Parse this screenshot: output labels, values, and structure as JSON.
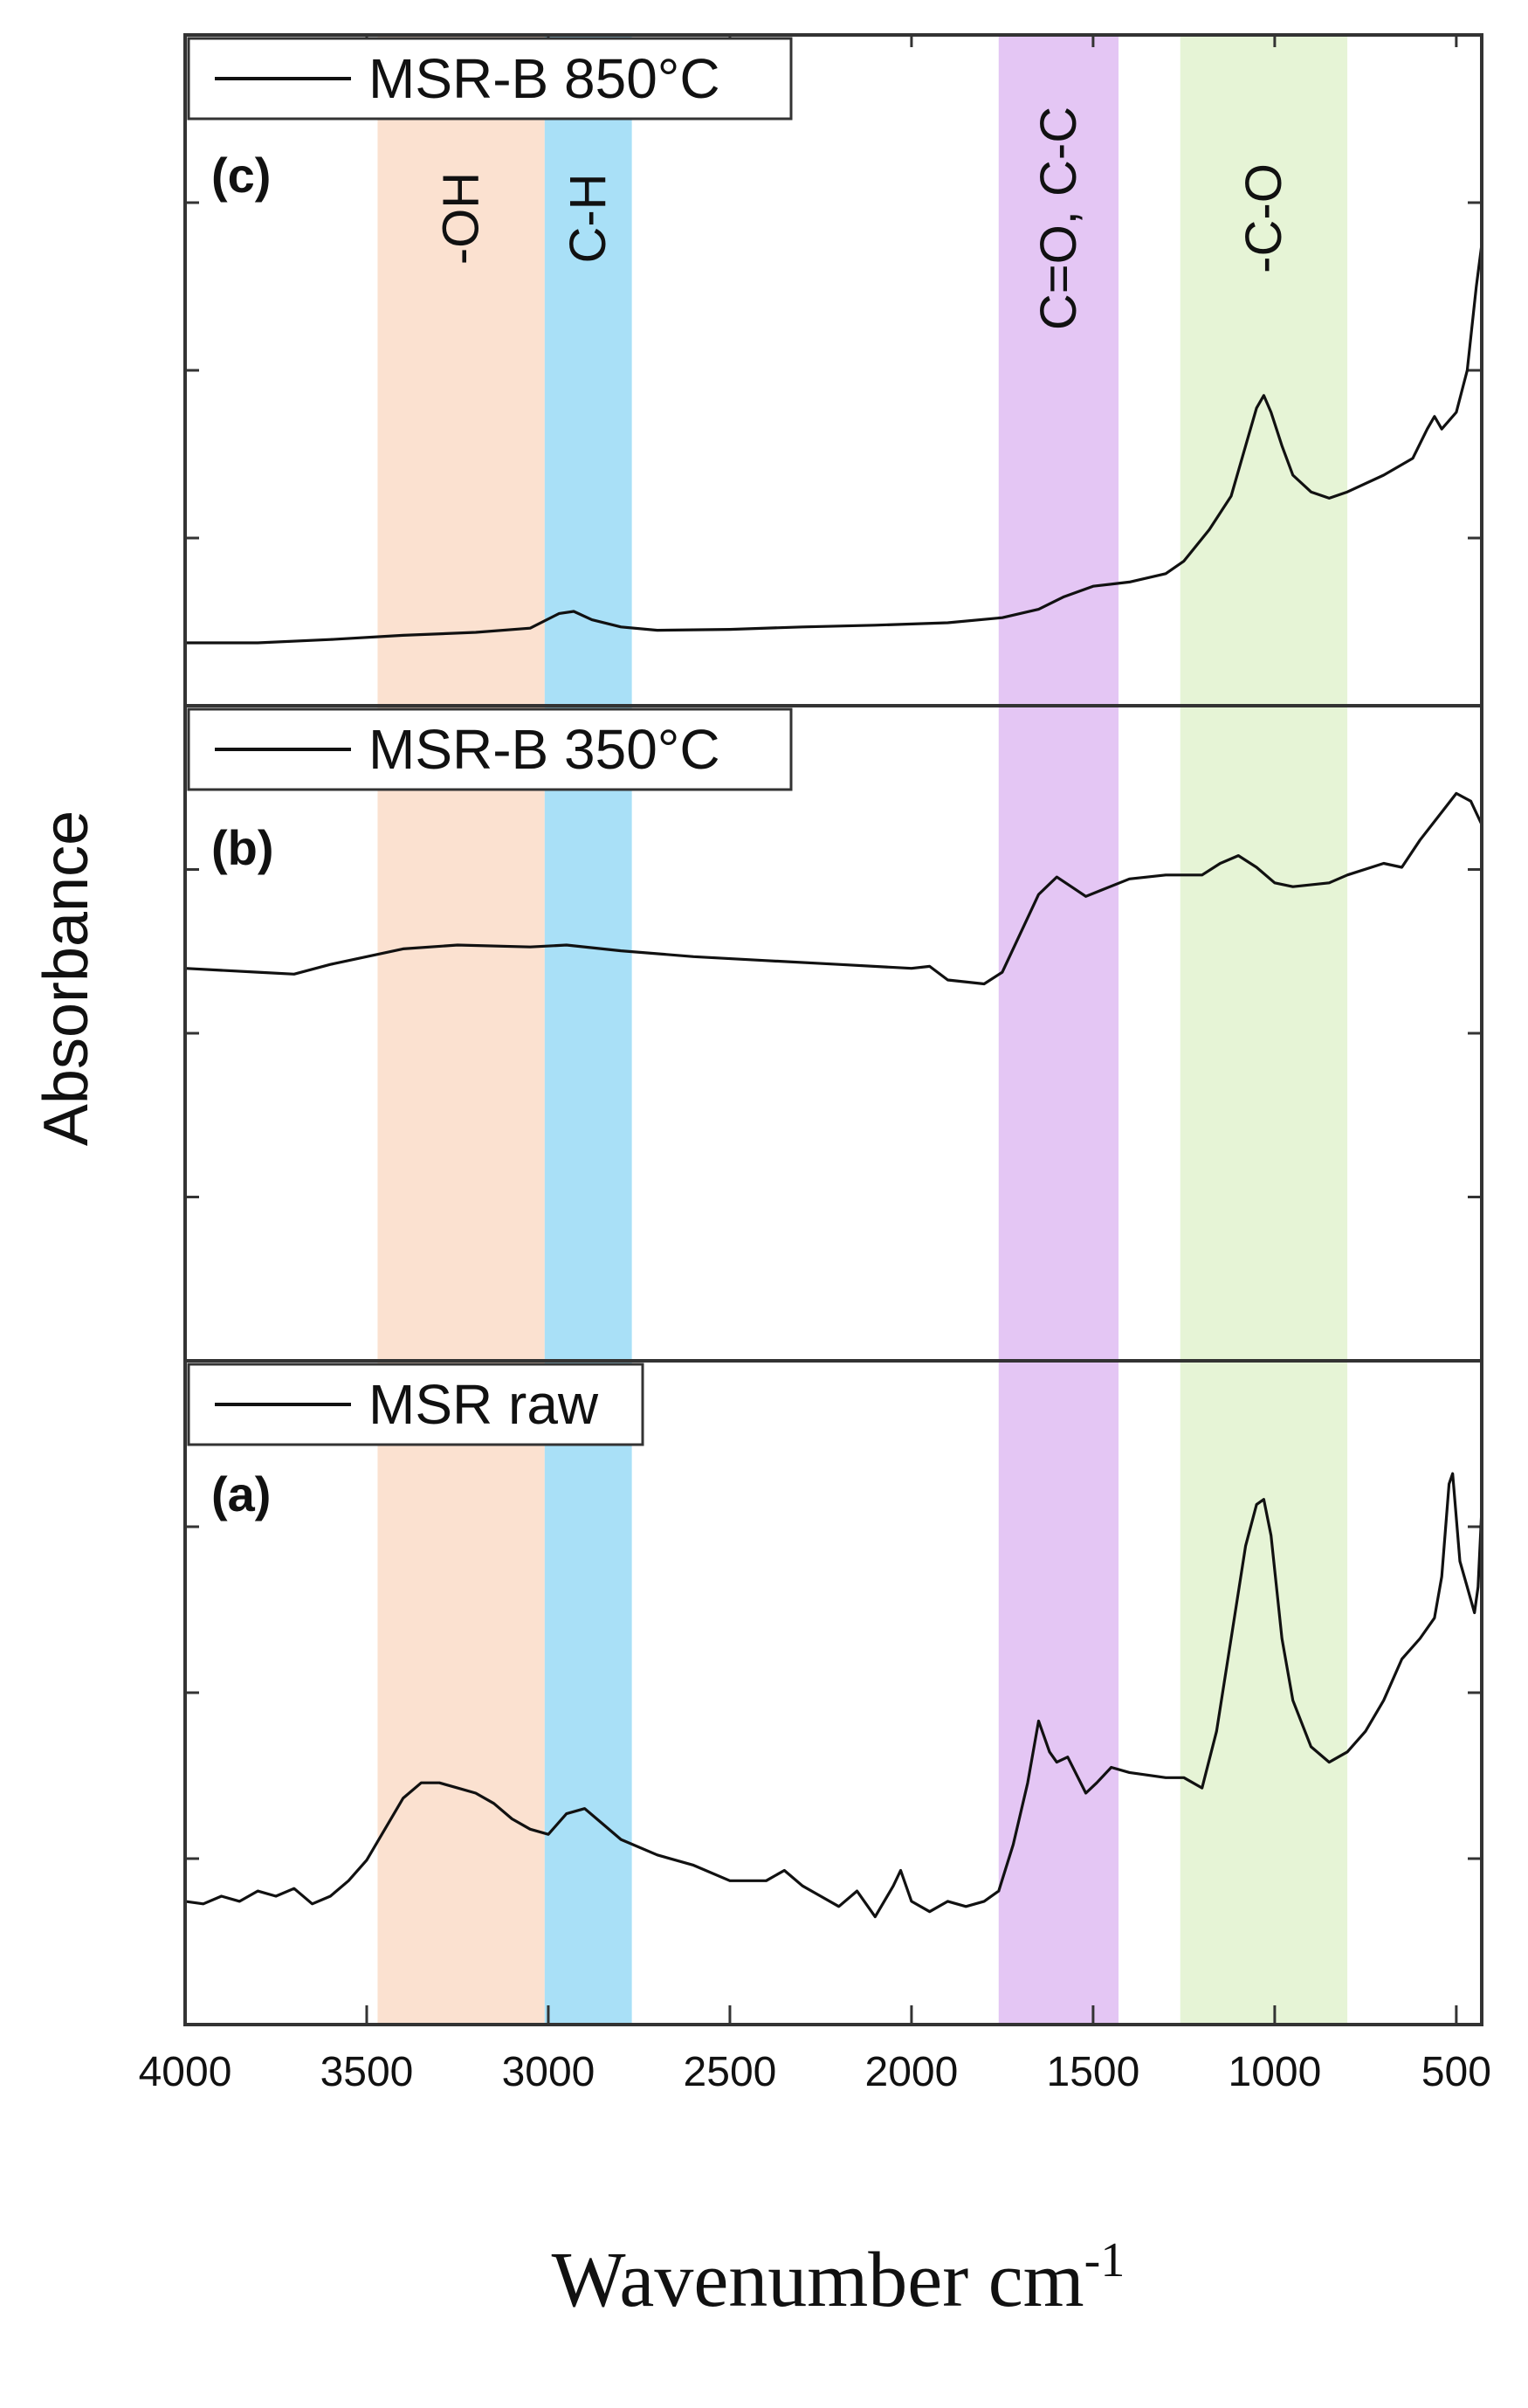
{
  "chart_data": {
    "type": "line",
    "ylabel": "Absorbance",
    "xlabel": "Wavenumber cm",
    "xlabel_superscript": "-1",
    "xlim": [
      4000,
      430
    ],
    "x_ticks": [
      4000,
      3500,
      3000,
      2500,
      2000,
      1500,
      1000,
      500
    ],
    "bands": [
      {
        "label": "-OH",
        "from": 3470,
        "to": 3010,
        "color": "#fbe1d0"
      },
      {
        "label": "C-H",
        "from": 3010,
        "to": 2770,
        "color": "#a9e0f7"
      },
      {
        "label": "C=O, C-C",
        "from": 1760,
        "to": 1430,
        "color": "#e4c6f4"
      },
      {
        "label": "-C-O",
        "from": 1260,
        "to": 800,
        "color": "#e6f4d6"
      }
    ],
    "panels": [
      {
        "tag": "(c)",
        "series": {
          "name": "MSR-B 850°C",
          "points": [
            [
              4000,
              0.05
            ],
            [
              3800,
              0.05
            ],
            [
              3600,
              0.058
            ],
            [
              3400,
              0.068
            ],
            [
              3200,
              0.075
            ],
            [
              3050,
              0.085
            ],
            [
              2970,
              0.12
            ],
            [
              2930,
              0.125
            ],
            [
              2880,
              0.105
            ],
            [
              2800,
              0.088
            ],
            [
              2700,
              0.08
            ],
            [
              2500,
              0.082
            ],
            [
              2300,
              0.088
            ],
            [
              2100,
              0.092
            ],
            [
              1900,
              0.098
            ],
            [
              1750,
              0.11
            ],
            [
              1650,
              0.13
            ],
            [
              1580,
              0.16
            ],
            [
              1500,
              0.185
            ],
            [
              1400,
              0.195
            ],
            [
              1300,
              0.215
            ],
            [
              1250,
              0.245
            ],
            [
              1180,
              0.32
            ],
            [
              1120,
              0.4
            ],
            [
              1080,
              0.52
            ],
            [
              1050,
              0.61
            ],
            [
              1030,
              0.64
            ],
            [
              1010,
              0.6
            ],
            [
              980,
              0.52
            ],
            [
              950,
              0.45
            ],
            [
              900,
              0.41
            ],
            [
              850,
              0.395
            ],
            [
              800,
              0.41
            ],
            [
              700,
              0.45
            ],
            [
              620,
              0.49
            ],
            [
              580,
              0.56
            ],
            [
              560,
              0.59
            ],
            [
              540,
              0.56
            ],
            [
              500,
              0.6
            ],
            [
              470,
              0.7
            ],
            [
              445,
              0.9
            ],
            [
              430,
              1.0
            ]
          ]
        }
      },
      {
        "tag": "(b)",
        "series": {
          "name": "MSR-B 350°C",
          "points": [
            [
              4000,
              0.43
            ],
            [
              3800,
              0.42
            ],
            [
              3700,
              0.415
            ],
            [
              3600,
              0.44
            ],
            [
              3400,
              0.48
            ],
            [
              3250,
              0.49
            ],
            [
              3050,
              0.485
            ],
            [
              2950,
              0.49
            ],
            [
              2800,
              0.475
            ],
            [
              2600,
              0.46
            ],
            [
              2400,
              0.45
            ],
            [
              2200,
              0.44
            ],
            [
              2000,
              0.43
            ],
            [
              1950,
              0.435
            ],
            [
              1900,
              0.4
            ],
            [
              1800,
              0.39
            ],
            [
              1750,
              0.42
            ],
            [
              1700,
              0.52
            ],
            [
              1650,
              0.62
            ],
            [
              1600,
              0.665
            ],
            [
              1560,
              0.64
            ],
            [
              1520,
              0.615
            ],
            [
              1480,
              0.63
            ],
            [
              1400,
              0.66
            ],
            [
              1300,
              0.67
            ],
            [
              1200,
              0.67
            ],
            [
              1150,
              0.7
            ],
            [
              1100,
              0.72
            ],
            [
              1050,
              0.69
            ],
            [
              1000,
              0.65
            ],
            [
              950,
              0.64
            ],
            [
              850,
              0.65
            ],
            [
              800,
              0.67
            ],
            [
              700,
              0.7
            ],
            [
              650,
              0.69
            ],
            [
              600,
              0.76
            ],
            [
              550,
              0.82
            ],
            [
              500,
              0.88
            ],
            [
              460,
              0.86
            ],
            [
              430,
              0.8
            ]
          ]
        }
      },
      {
        "tag": "(a)",
        "series": {
          "name": "MSR raw",
          "points": [
            [
              4000,
              0.09
            ],
            [
              3950,
              0.085
            ],
            [
              3900,
              0.1
            ],
            [
              3850,
              0.09
            ],
            [
              3800,
              0.11
            ],
            [
              3750,
              0.1
            ],
            [
              3700,
              0.115
            ],
            [
              3650,
              0.085
            ],
            [
              3600,
              0.1
            ],
            [
              3550,
              0.13
            ],
            [
              3500,
              0.17
            ],
            [
              3450,
              0.23
            ],
            [
              3400,
              0.29
            ],
            [
              3350,
              0.32
            ],
            [
              3300,
              0.32
            ],
            [
              3250,
              0.31
            ],
            [
              3200,
              0.3
            ],
            [
              3150,
              0.28
            ],
            [
              3100,
              0.25
            ],
            [
              3050,
              0.23
            ],
            [
              3000,
              0.22
            ],
            [
              2950,
              0.26
            ],
            [
              2900,
              0.27
            ],
            [
              2850,
              0.24
            ],
            [
              2800,
              0.21
            ],
            [
              2700,
              0.18
            ],
            [
              2600,
              0.16
            ],
            [
              2500,
              0.13
            ],
            [
              2400,
              0.13
            ],
            [
              2350,
              0.15
            ],
            [
              2300,
              0.12
            ],
            [
              2250,
              0.1
            ],
            [
              2200,
              0.08
            ],
            [
              2150,
              0.11
            ],
            [
              2100,
              0.06
            ],
            [
              2050,
              0.12
            ],
            [
              2030,
              0.15
            ],
            [
              2000,
              0.09
            ],
            [
              1950,
              0.07
            ],
            [
              1900,
              0.09
            ],
            [
              1850,
              0.08
            ],
            [
              1800,
              0.09
            ],
            [
              1760,
              0.11
            ],
            [
              1720,
              0.2
            ],
            [
              1680,
              0.32
            ],
            [
              1650,
              0.44
            ],
            [
              1620,
              0.38
            ],
            [
              1600,
              0.36
            ],
            [
              1570,
              0.37
            ],
            [
              1520,
              0.3
            ],
            [
              1490,
              0.32
            ],
            [
              1450,
              0.35
            ],
            [
              1400,
              0.34
            ],
            [
              1300,
              0.33
            ],
            [
              1250,
              0.33
            ],
            [
              1200,
              0.31
            ],
            [
              1160,
              0.42
            ],
            [
              1120,
              0.6
            ],
            [
              1080,
              0.78
            ],
            [
              1050,
              0.86
            ],
            [
              1030,
              0.87
            ],
            [
              1010,
              0.8
            ],
            [
              980,
              0.6
            ],
            [
              950,
              0.48
            ],
            [
              900,
              0.39
            ],
            [
              850,
              0.36
            ],
            [
              800,
              0.38
            ],
            [
              750,
              0.42
            ],
            [
              700,
              0.48
            ],
            [
              650,
              0.56
            ],
            [
              600,
              0.6
            ],
            [
              560,
              0.64
            ],
            [
              540,
              0.72
            ],
            [
              520,
              0.9
            ],
            [
              510,
              0.92
            ],
            [
              490,
              0.75
            ],
            [
              470,
              0.7
            ],
            [
              450,
              0.65
            ],
            [
              440,
              0.7
            ],
            [
              430,
              0.85
            ]
          ]
        }
      }
    ]
  }
}
